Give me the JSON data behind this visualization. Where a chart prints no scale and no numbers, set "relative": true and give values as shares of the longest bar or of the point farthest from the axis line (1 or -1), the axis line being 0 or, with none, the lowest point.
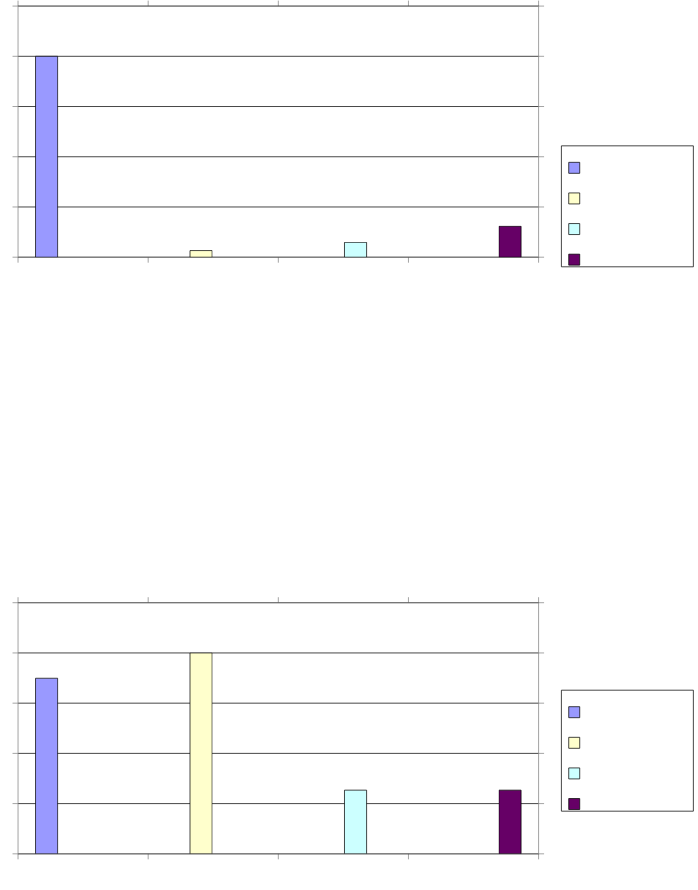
{
  "chart_data": [
    {
      "type": "bar",
      "relative": true,
      "categories": [
        null,
        null,
        null,
        null
      ],
      "grid": "y",
      "colors": [
        "#9999ff",
        "#ffffcc",
        "#ccffff",
        "#660066"
      ],
      "values": [
        1,
        0.033,
        0.074,
        0.154
      ]
    },
    {
      "type": "bar",
      "relative": true,
      "categories": [
        null,
        null,
        null,
        null
      ],
      "grid": "y",
      "colors": [
        "#9999ff",
        "#ffffcc",
        "#ccffff",
        "#660066"
      ],
      "values": [
        0.874,
        1,
        0.317,
        0.317
      ]
    }
  ]
}
